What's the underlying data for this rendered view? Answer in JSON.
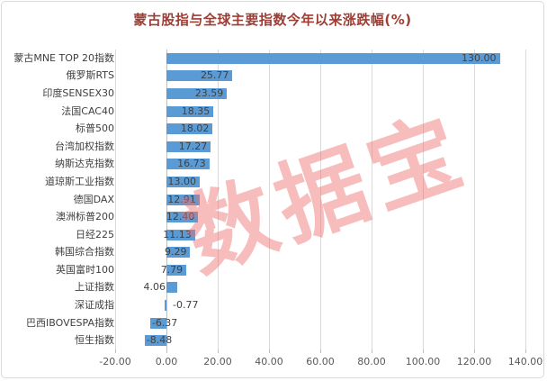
{
  "title": "蒙古股指与全球主要指数今年以来涨跌幅(%)",
  "watermark": "数据宝",
  "colors": {
    "title": "#9e3d34",
    "bar": "#5b9bd5",
    "gridline": "#d9d9d9",
    "zero_line": "#bfbfbf",
    "axis_text": "#595959",
    "label_text": "#404040",
    "watermark": "rgba(238,108,108,0.45)",
    "frame_border": "#d9d9d9"
  },
  "chart_data": {
    "type": "bar",
    "orientation": "horizontal",
    "title": "蒙古股指与全球主要指数今年以来涨跌幅(%)",
    "categories": [
      "蒙古MNE TOP 20指数",
      "俄罗斯RTS",
      "印度SENSEX30",
      "法国CAC40",
      "标普500",
      "台湾加权指数",
      "纳斯达克指数",
      "道琼斯工业指数",
      "德国DAX",
      "澳洲标普200",
      "日经225",
      "韩国综合指数",
      "英国富时100",
      "上证指数",
      "深证成指",
      "巴西IBOVESPA指数",
      "恒生指数"
    ],
    "values": [
      130.0,
      25.77,
      23.59,
      18.35,
      18.02,
      17.27,
      16.73,
      13.0,
      12.91,
      12.4,
      11.13,
      9.29,
      7.79,
      4.06,
      -0.77,
      -6.37,
      -8.48
    ],
    "value_labels": [
      "130.00",
      "25.77",
      "23.59",
      "18.35",
      "18.02",
      "17.27",
      "16.73",
      "13.00",
      "12.91",
      "12.40",
      "11.13",
      "9.29",
      "7.79",
      "4.06",
      "-0.77",
      "-6.37",
      "-8.48"
    ],
    "x_tick_labels": [
      "-20.00",
      "0.00",
      "20.00",
      "40.00",
      "60.00",
      "80.00",
      "100.00",
      "120.00",
      "140.00"
    ],
    "xlim": [
      -20,
      140
    ],
    "x_tick_step": 20,
    "grid": true,
    "legend": false,
    "data_label_position": "inside-end",
    "watermark_text": "数据宝"
  }
}
